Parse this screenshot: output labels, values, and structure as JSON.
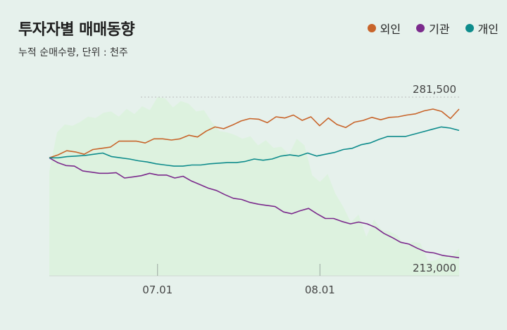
{
  "title": "투자자별 매매동향",
  "subtitle": "누적 순매수량, 단위 : 천주",
  "colors": {
    "foreign": "#c8642a",
    "institution": "#7b2a8c",
    "individual": "#0e8c8c",
    "area": "#ddf2df",
    "background": "#e6f1ec"
  },
  "legend": [
    {
      "label": "외인",
      "color": "#c8642a"
    },
    {
      "label": "기관",
      "color": "#7b2a8c"
    },
    {
      "label": "개인",
      "color": "#0e8c8c"
    }
  ],
  "chart_data": {
    "type": "line",
    "x_ticks": [
      {
        "label": "07.01",
        "index": 14
      },
      {
        "label": "08.01",
        "index": 35
      }
    ],
    "ylim": [
      213000,
      281500
    ],
    "annotations": {
      "max": "281,500",
      "min": "213,000"
    },
    "background_area": {
      "name": "",
      "values": [
        253000,
        268000,
        271000,
        270500,
        272000,
        274000,
        273500,
        275500,
        276000,
        274000,
        277000,
        275000,
        278000,
        276500,
        281500,
        281000,
        277500,
        280000,
        279000,
        276000,
        276500,
        272000,
        268500,
        268000,
        267000,
        265500,
        266500,
        263000,
        265000,
        262000,
        262500,
        259500,
        265500,
        263000,
        251500,
        249000,
        252000,
        244500,
        239500,
        233500,
        236500,
        228000,
        234500,
        230500,
        230000,
        228500,
        224500,
        226000,
        225500,
        218500,
        219000,
        221000,
        220500,
        223500
      ]
    },
    "series": [
      {
        "name": "외인",
        "key": "foreign",
        "values": [
          1.0,
          1.05,
          1.12,
          1.1,
          1.06,
          1.14,
          1.16,
          1.18,
          1.28,
          1.28,
          1.28,
          1.25,
          1.32,
          1.32,
          1.3,
          1.32,
          1.38,
          1.35,
          1.45,
          1.52,
          1.49,
          1.55,
          1.62,
          1.66,
          1.65,
          1.59,
          1.69,
          1.67,
          1.72,
          1.63,
          1.69,
          1.54,
          1.67,
          1.56,
          1.51,
          1.6,
          1.63,
          1.68,
          1.64,
          1.68,
          1.69,
          1.72,
          1.74,
          1.79,
          1.82,
          1.78,
          1.66,
          1.82
        ]
      },
      {
        "name": "기관",
        "key": "institution",
        "values": [
          1.0,
          0.92,
          0.87,
          0.86,
          0.78,
          0.76,
          0.74,
          0.74,
          0.75,
          0.66,
          0.68,
          0.7,
          0.74,
          0.71,
          0.71,
          0.66,
          0.69,
          0.61,
          0.55,
          0.49,
          0.45,
          0.38,
          0.32,
          0.3,
          0.25,
          0.22,
          0.2,
          0.18,
          0.09,
          0.06,
          0.11,
          0.15,
          0.06,
          -0.02,
          -0.02,
          -0.07,
          -0.11,
          -0.08,
          -0.11,
          -0.17,
          -0.27,
          -0.34,
          -0.42,
          -0.45,
          -0.52,
          -0.58,
          -0.6,
          -0.64,
          -0.66,
          -0.68
        ]
      },
      {
        "name": "개인",
        "key": "individual",
        "values": [
          1.0,
          1.0,
          1.02,
          1.03,
          1.04,
          1.06,
          1.08,
          1.02,
          1.0,
          0.98,
          0.95,
          0.93,
          0.9,
          0.88,
          0.86,
          0.86,
          0.88,
          0.88,
          0.9,
          0.91,
          0.92,
          0.92,
          0.94,
          0.98,
          0.96,
          0.98,
          1.03,
          1.05,
          1.03,
          1.08,
          1.03,
          1.06,
          1.09,
          1.14,
          1.16,
          1.22,
          1.25,
          1.31,
          1.36,
          1.36,
          1.36,
          1.4,
          1.44,
          1.48,
          1.52,
          1.5,
          1.46
        ]
      }
    ]
  }
}
